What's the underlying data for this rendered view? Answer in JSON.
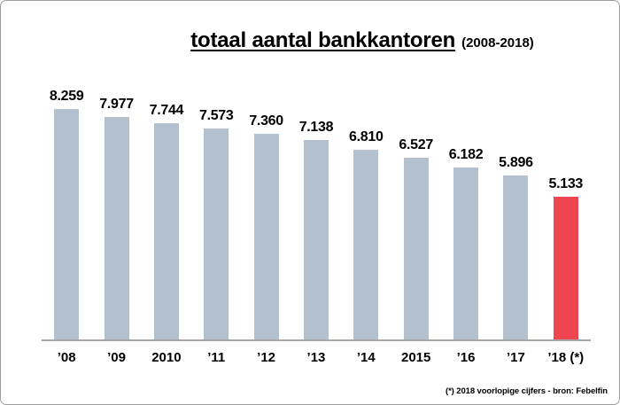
{
  "title": {
    "main": "totaal aantal bankkantoren",
    "suffix": "(2008-2018)"
  },
  "footnote": "(*) 2018 voorlopige cijfers - bron: Febelfin",
  "colors": {
    "bar": "#b3c1ce",
    "highlight": "#ee4550",
    "axis": "#a6a6a6"
  },
  "chart_data": {
    "type": "bar",
    "title": "totaal aantal bankkantoren (2008-2018)",
    "categories": [
      "’08",
      "’09",
      "2010",
      "’11",
      "’12",
      "’13",
      "’14",
      "2015",
      "’16",
      "’17",
      "’18 (*)"
    ],
    "values": [
      8259,
      7977,
      7744,
      7573,
      7360,
      7138,
      6810,
      6527,
      6182,
      5896,
      5133
    ],
    "value_labels": [
      "8.259",
      "7.977",
      "7.744",
      "7.573",
      "7.360",
      "7.138",
      "6.810",
      "6.527",
      "6.182",
      "5.896",
      "5.133"
    ],
    "highlight_index": 10,
    "xlabel": "",
    "ylabel": "",
    "ylim": [
      0,
      8259
    ],
    "grid": false,
    "legend": false,
    "annotation": "(*) 2018 voorlopige cijfers - bron: Febelfin"
  }
}
